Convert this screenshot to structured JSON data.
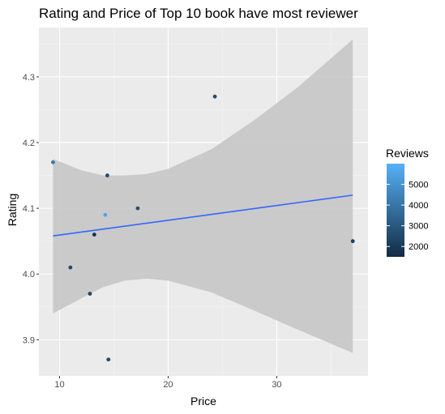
{
  "chart_data": {
    "type": "scatter",
    "title": "Rating and Price of Top 10 book have most reviewer",
    "xlabel": "Price",
    "ylabel": "Rating",
    "xlim": [
      8.1,
      38.4
    ],
    "ylim": [
      3.845,
      4.375
    ],
    "x_ticks": [
      10,
      20,
      30
    ],
    "y_ticks": [
      3.9,
      4.0,
      4.1,
      4.2,
      4.3
    ],
    "grid": true,
    "points": [
      {
        "x": 9.4,
        "y": 4.17,
        "reviews": 4100
      },
      {
        "x": 11.0,
        "y": 4.01,
        "reviews": 2500
      },
      {
        "x": 12.8,
        "y": 3.97,
        "reviews": 2300
      },
      {
        "x": 13.2,
        "y": 4.06,
        "reviews": 1800
      },
      {
        "x": 14.2,
        "y": 4.09,
        "reviews": 5600
      },
      {
        "x": 14.4,
        "y": 4.15,
        "reviews": 2600
      },
      {
        "x": 14.5,
        "y": 3.87,
        "reviews": 2500
      },
      {
        "x": 17.2,
        "y": 4.1,
        "reviews": 2700
      },
      {
        "x": 24.3,
        "y": 4.27,
        "reviews": 2600
      },
      {
        "x": 37.0,
        "y": 4.05,
        "reviews": 2200
      }
    ],
    "trend": {
      "x": [
        9.4,
        37.0
      ],
      "y": [
        4.058,
        4.12
      ],
      "color": "#3366ff"
    },
    "confidence_band": {
      "x": [
        9.4,
        12,
        14,
        16,
        18,
        20,
        24,
        28,
        32,
        37
      ],
      "upper": [
        4.175,
        4.158,
        4.15,
        4.15,
        4.152,
        4.16,
        4.19,
        4.235,
        4.285,
        4.357
      ],
      "lower": [
        3.94,
        3.963,
        3.98,
        3.99,
        3.993,
        3.99,
        3.972,
        3.944,
        3.915,
        3.88
      ]
    },
    "legend": {
      "title": "Reviews",
      "placement": "right",
      "ticks": [
        2000,
        3000,
        4000,
        5000
      ],
      "range": [
        1500,
        6000
      ],
      "low_color": "#132b43",
      "high_color": "#56b1f7"
    },
    "colors": {
      "panel": "#ebebeb",
      "grid_major": "#ffffff",
      "band": "#c6c6c6"
    }
  }
}
